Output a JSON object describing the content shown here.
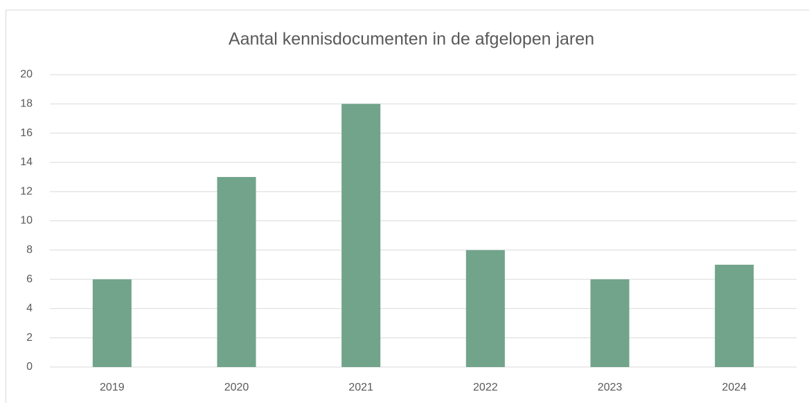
{
  "chart_data": {
    "type": "bar",
    "title": "Aantal kennisdocumenten in de afgelopen jaren",
    "categories": [
      "2019",
      "2020",
      "2021",
      "2022",
      "2023",
      "2024"
    ],
    "values": [
      6,
      13,
      18,
      8,
      6,
      7
    ],
    "color": "#71a48b",
    "ylim": [
      0,
      20
    ],
    "yticks": [
      0,
      2,
      4,
      6,
      8,
      10,
      12,
      14,
      16,
      18,
      20
    ],
    "grid": true
  }
}
